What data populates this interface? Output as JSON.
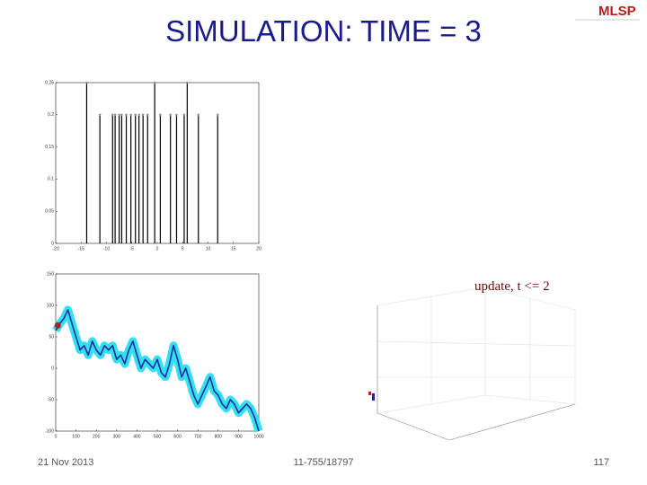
{
  "title": "SIMULATION: TIME = 3",
  "logo": "MLSP",
  "annotation": "update, t <= 2",
  "footer": {
    "date": "21  Nov 2013",
    "course": "11-755/18797",
    "page": "117"
  },
  "chart_data": [
    {
      "type": "stem",
      "xlim": [
        -20,
        20
      ],
      "ylim": [
        0,
        0.25
      ],
      "xticks": [
        -20,
        -15,
        -10,
        -5,
        0,
        5,
        10,
        15,
        20
      ],
      "yticks": [
        0,
        0.05,
        0.1,
        0.15,
        0.2,
        0.25
      ],
      "x": [
        -13.9,
        -11.3,
        -8.8,
        -8.3,
        -7.5,
        -7,
        -6.1,
        -5.2,
        -4.3,
        -3.6,
        -2.8,
        -1.9,
        -0.5,
        0.6,
        2.6,
        3.8,
        5.3,
        5.9,
        8.1,
        11.9
      ],
      "values": [
        0.25,
        0.2,
        0.2,
        0.2,
        0.2,
        0.2,
        0.2,
        0.2,
        0.2,
        0.2,
        0.2,
        0.2,
        0.25,
        0.2,
        0.2,
        0.2,
        0.2,
        0.25,
        0.2,
        0.2
      ],
      "color": "#000000"
    },
    {
      "type": "line",
      "xlim": [
        0,
        1000
      ],
      "ylim": [
        -100,
        150
      ],
      "xticks": [
        0,
        100,
        200,
        300,
        400,
        500,
        600,
        700,
        800,
        900,
        1000
      ],
      "yticks": [
        -100,
        -50,
        0,
        50,
        100,
        150
      ],
      "x": [
        0,
        20,
        40,
        60,
        80,
        100,
        120,
        140,
        160,
        180,
        200,
        220,
        240,
        260,
        280,
        300,
        320,
        340,
        360,
        380,
        400,
        420,
        440,
        460,
        480,
        500,
        520,
        540,
        560,
        580,
        600,
        620,
        640,
        660,
        680,
        700,
        720,
        740,
        760,
        780,
        800,
        820,
        840,
        860,
        880,
        900,
        920,
        940,
        960,
        980,
        1000
      ],
      "values": [
        60,
        71,
        79,
        93,
        71,
        50,
        29,
        36,
        21,
        43,
        29,
        21,
        36,
        29,
        36,
        14,
        21,
        7,
        29,
        43,
        21,
        0,
        14,
        7,
        0,
        14,
        -7,
        -14,
        7,
        36,
        14,
        -14,
        0,
        -21,
        -43,
        -57,
        -43,
        -29,
        -14,
        -36,
        -43,
        -57,
        -64,
        -50,
        -57,
        -71,
        -64,
        -57,
        -64,
        -79,
        -100
      ],
      "color": "#1a2a9c",
      "band_color": "#33e0f0",
      "highlight": {
        "x": 10,
        "value": 68,
        "color": "#b02020"
      }
    }
  ]
}
